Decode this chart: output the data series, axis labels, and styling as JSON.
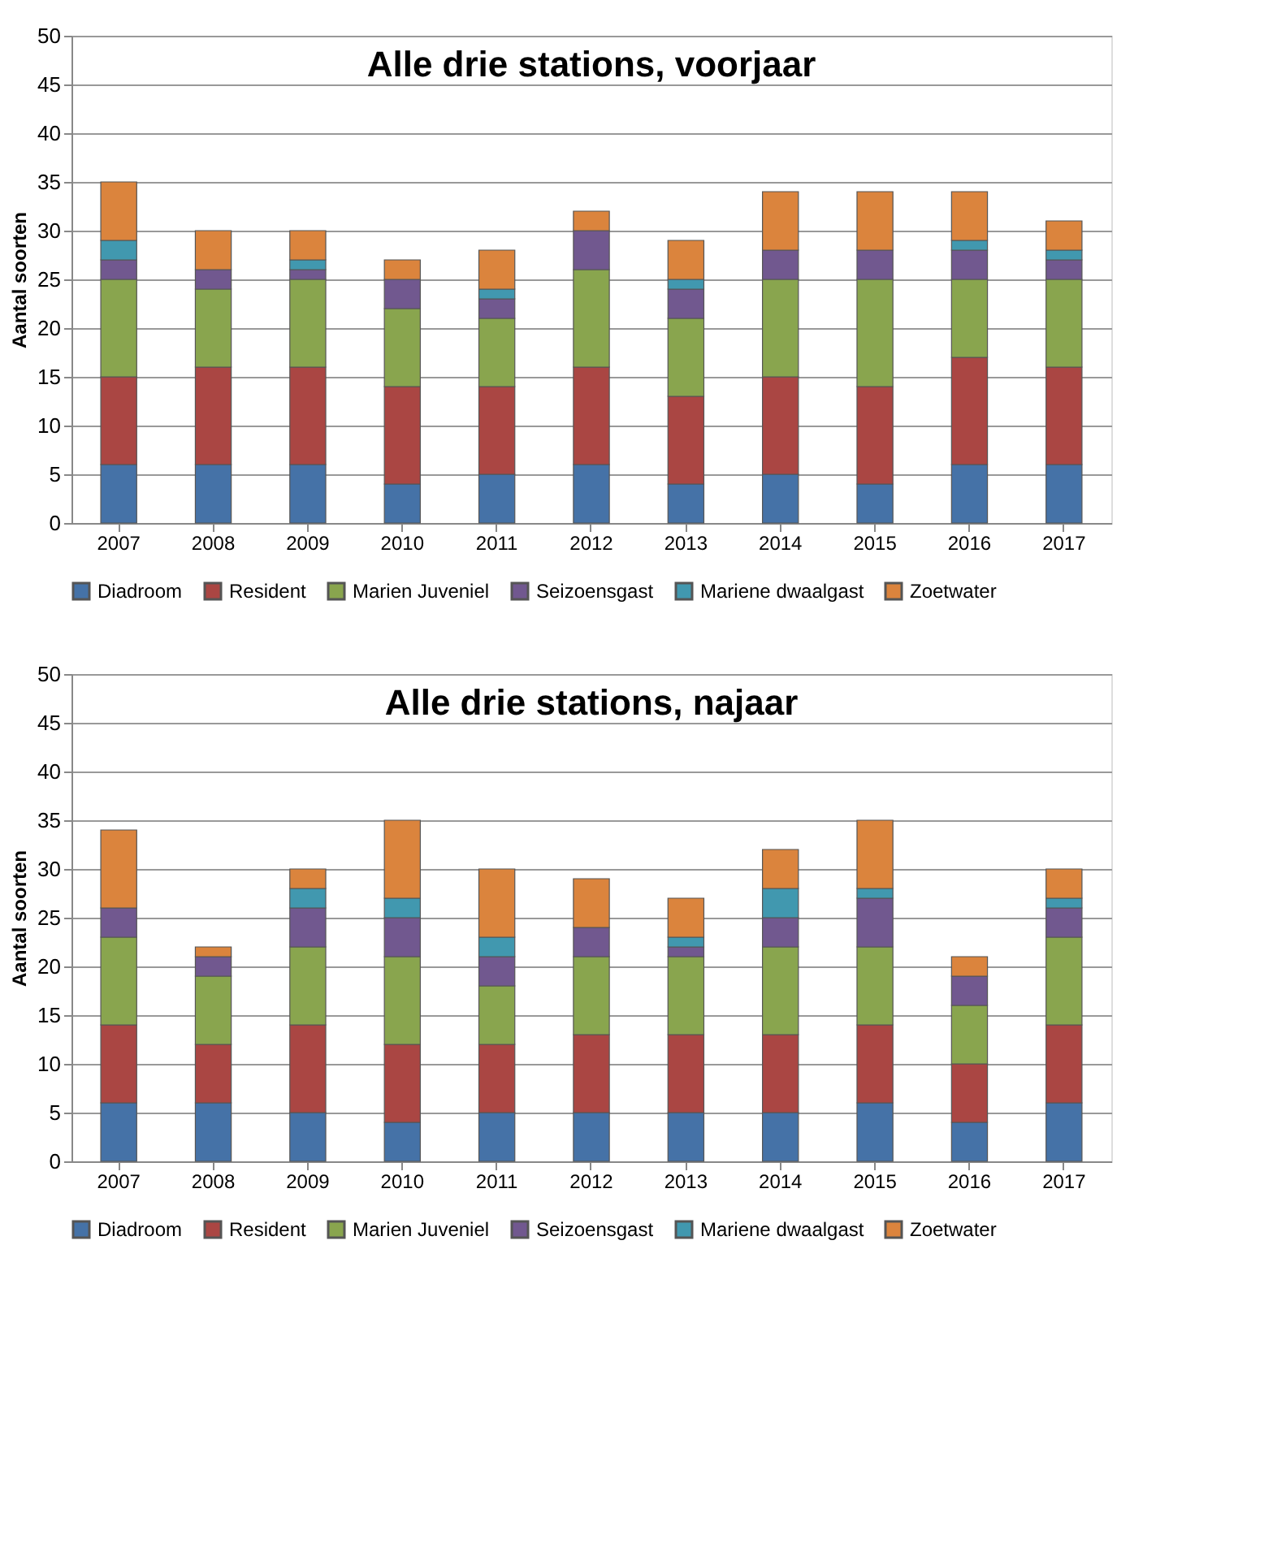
{
  "chart_data": [
    {
      "type": "bar",
      "stacked": true,
      "title": "Alle drie stations, voorjaar",
      "ylabel": "Aantal soorten",
      "categories": [
        "2007",
        "2008",
        "2009",
        "2010",
        "2011",
        "2012",
        "2013",
        "2014",
        "2015",
        "2016",
        "2017"
      ],
      "ylim": [
        0,
        50
      ],
      "yticks": [
        0,
        5,
        10,
        15,
        20,
        25,
        30,
        35,
        40,
        45,
        50
      ],
      "grid": "y",
      "legend": "bottom",
      "series": [
        {
          "name": "Diadroom",
          "color": "#4572a7",
          "values": [
            6,
            6,
            6,
            4,
            5,
            6,
            4,
            5,
            4,
            6,
            6
          ]
        },
        {
          "name": "Resident",
          "color": "#aa4643",
          "values": [
            9,
            10,
            10,
            10,
            9,
            10,
            9,
            10,
            10,
            11,
            10
          ]
        },
        {
          "name": "Marien Juveniel",
          "color": "#89a54e",
          "values": [
            10,
            8,
            9,
            8,
            7,
            10,
            8,
            10,
            11,
            8,
            9
          ]
        },
        {
          "name": "Seizoensgast",
          "color": "#71588f",
          "values": [
            2,
            2,
            1,
            3,
            2,
            4,
            3,
            3,
            3,
            3,
            2
          ]
        },
        {
          "name": "Mariene dwaalgast",
          "color": "#4198af",
          "values": [
            2,
            0,
            1,
            0,
            1,
            0,
            1,
            0,
            0,
            1,
            1
          ]
        },
        {
          "name": "Zoetwater",
          "color": "#db843d",
          "values": [
            6,
            4,
            3,
            2,
            4,
            2,
            4,
            6,
            6,
            5,
            3
          ]
        }
      ]
    },
    {
      "type": "bar",
      "stacked": true,
      "title": "Alle drie stations, najaar",
      "ylabel": "Aantal soorten",
      "categories": [
        "2007",
        "2008",
        "2009",
        "2010",
        "2011",
        "2012",
        "2013",
        "2014",
        "2015",
        "2016",
        "2017"
      ],
      "ylim": [
        0,
        50
      ],
      "yticks": [
        0,
        5,
        10,
        15,
        20,
        25,
        30,
        35,
        40,
        45,
        50
      ],
      "grid": "y",
      "legend": "bottom",
      "series": [
        {
          "name": "Diadroom",
          "color": "#4572a7",
          "values": [
            6,
            6,
            5,
            4,
            5,
            5,
            5,
            5,
            6,
            4,
            6
          ]
        },
        {
          "name": "Resident",
          "color": "#aa4643",
          "values": [
            8,
            6,
            9,
            8,
            7,
            8,
            8,
            8,
            8,
            6,
            8
          ]
        },
        {
          "name": "Marien Juveniel",
          "color": "#89a54e",
          "values": [
            9,
            7,
            8,
            9,
            6,
            8,
            8,
            9,
            8,
            6,
            9
          ]
        },
        {
          "name": "Seizoensgast",
          "color": "#71588f",
          "values": [
            3,
            2,
            4,
            4,
            3,
            3,
            1,
            3,
            5,
            3,
            3
          ]
        },
        {
          "name": "Mariene dwaalgast",
          "color": "#4198af",
          "values": [
            0,
            0,
            2,
            2,
            2,
            0,
            1,
            3,
            1,
            0,
            1
          ]
        },
        {
          "name": "Zoetwater",
          "color": "#db843d",
          "values": [
            8,
            1,
            2,
            8,
            7,
            5,
            4,
            4,
            7,
            2,
            3
          ]
        }
      ]
    }
  ]
}
